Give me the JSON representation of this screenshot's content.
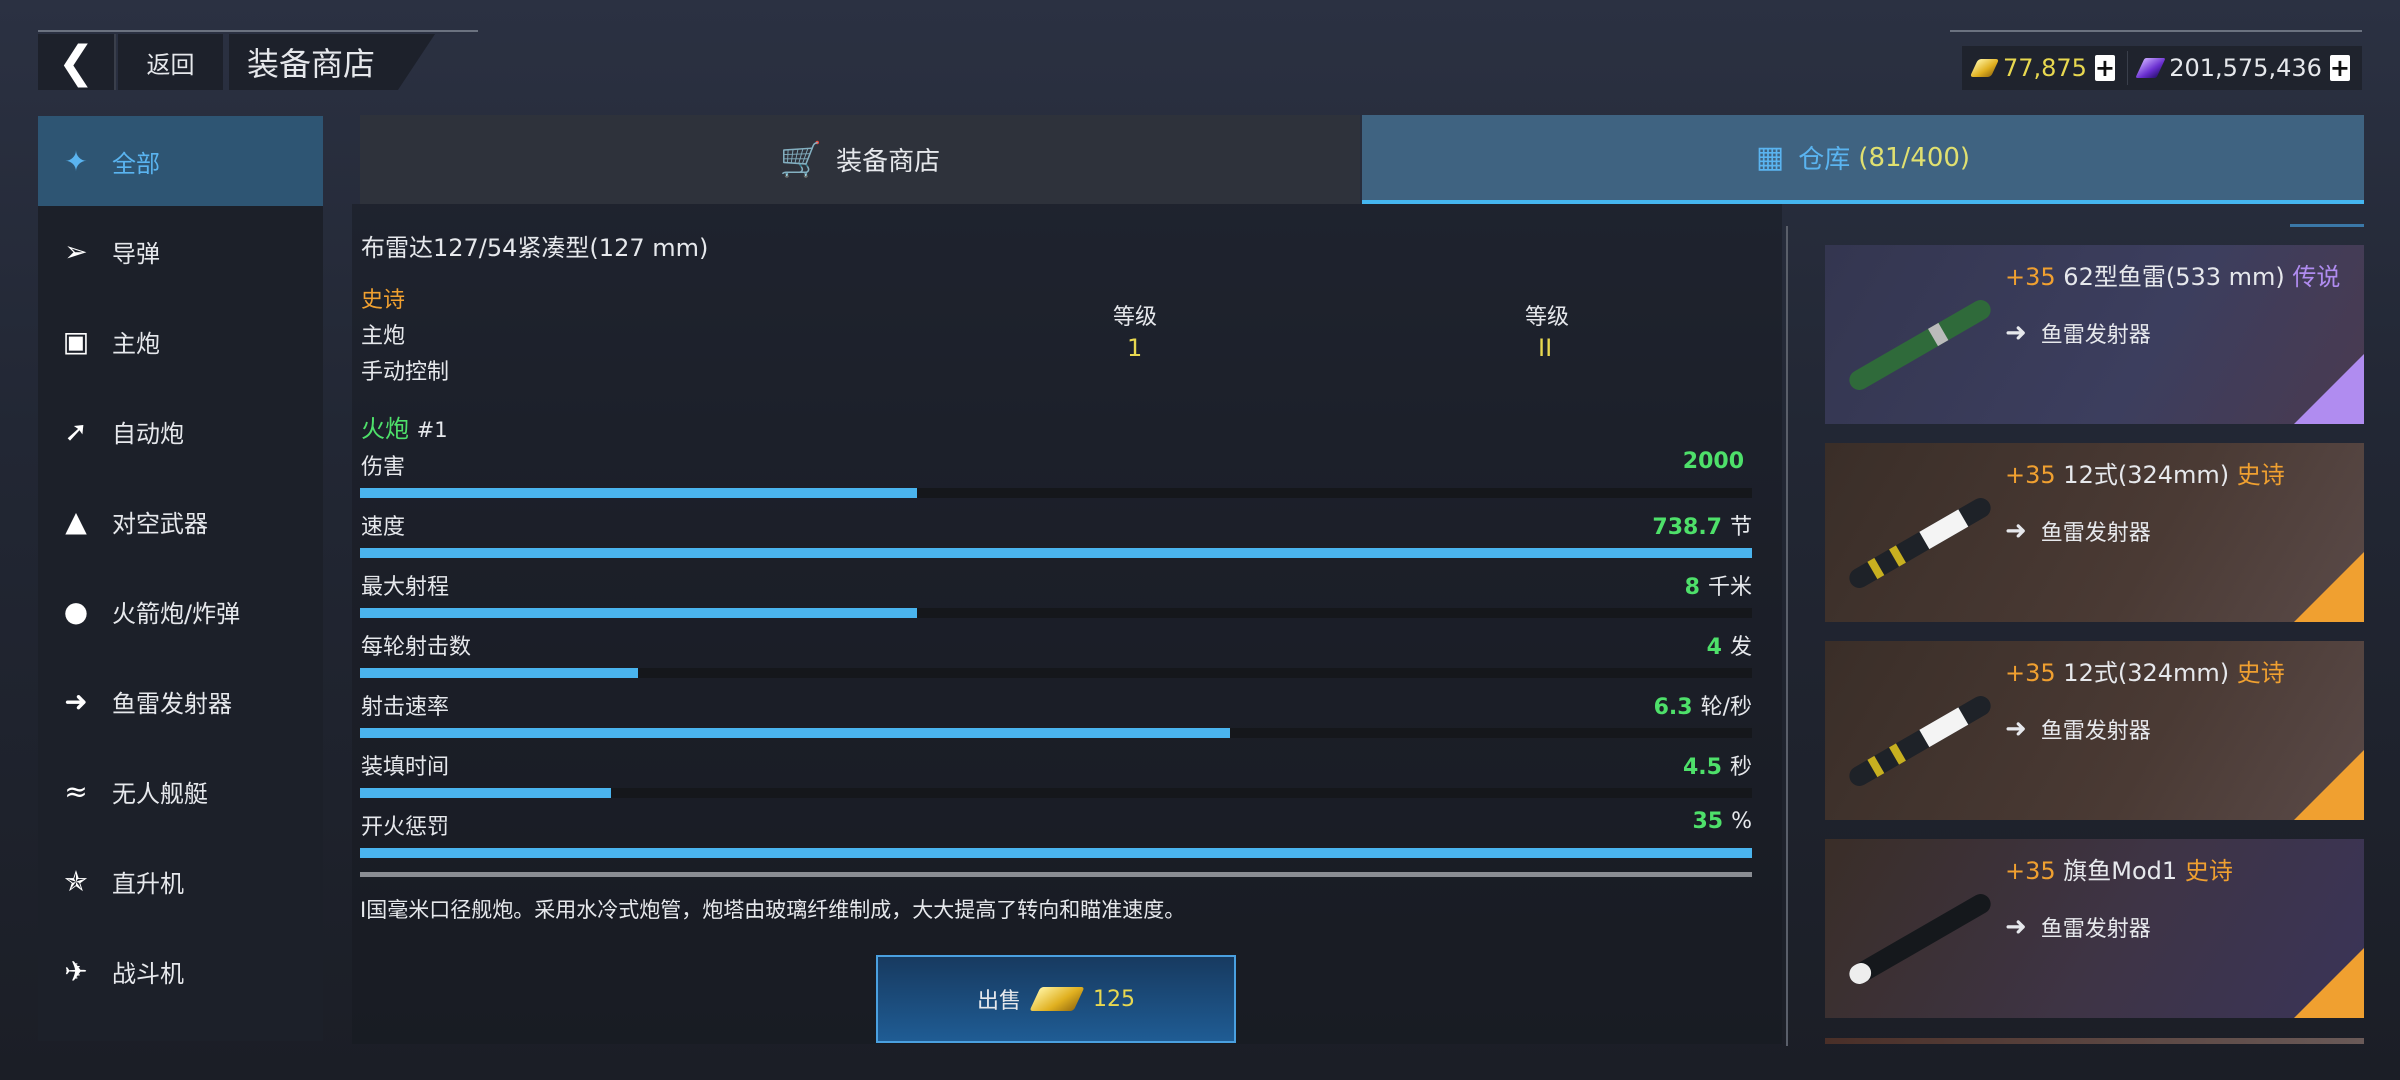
{
  "header": {
    "back_icon": "chevron-left-icon",
    "back_label": "返回",
    "title": "装备商店"
  },
  "currency": {
    "gold": "77,875",
    "gold_icon": "gold-bar-icon",
    "credits": "201,575,436",
    "credits_icon": "purple-ticket-icon"
  },
  "sidebar": {
    "items": [
      {
        "label": "全部",
        "icon": "all-icon",
        "active": true
      },
      {
        "label": "导弹",
        "icon": "missile-icon"
      },
      {
        "label": "主炮",
        "icon": "main-gun-icon"
      },
      {
        "label": "自动炮",
        "icon": "autocannon-icon"
      },
      {
        "label": "对空武器",
        "icon": "anti-air-icon"
      },
      {
        "label": "火箭炮/炸弹",
        "icon": "rocket-bomb-icon"
      },
      {
        "label": "鱼雷发射器",
        "icon": "torpedo-icon"
      },
      {
        "label": "无人舰艇",
        "icon": "drone-boat-icon"
      },
      {
        "label": "直升机",
        "icon": "helicopter-icon"
      },
      {
        "label": "战斗机",
        "icon": "fighter-jet-icon"
      }
    ]
  },
  "tabs": [
    {
      "label": "装备商店",
      "icon": "cart-icon"
    },
    {
      "label": "仓库",
      "count": "(81/400)",
      "icon": "boxes-icon",
      "active": true
    }
  ],
  "detail": {
    "name": "布雷达127/54紧凑型(127 mm)",
    "rarity": "史诗",
    "category": "主炮",
    "control": "手动控制",
    "levels": [
      {
        "label": "等级",
        "value": "1"
      },
      {
        "label": "等级",
        "value": "II"
      }
    ],
    "weapon": {
      "name": "火炮",
      "index": "#1"
    },
    "stats": [
      {
        "label": "伤害",
        "value": "2000",
        "unit": "",
        "fill": 0.4
      },
      {
        "label": "速度",
        "value": "738.7",
        "unit": "节",
        "fill": 1.0
      },
      {
        "label": "最大射程",
        "value": "8",
        "unit": "千米",
        "fill": 0.4
      },
      {
        "label": "每轮射击数",
        "value": "4",
        "unit": "发",
        "fill": 0.2
      },
      {
        "label": "射击速率",
        "value": "6.3",
        "unit": "轮/秒",
        "fill": 0.625
      },
      {
        "label": "装填时间",
        "value": "4.5",
        "unit": "秒",
        "fill": 0.18
      },
      {
        "label": "开火惩罚",
        "value": "35",
        "unit": "%",
        "fill": 1.0
      }
    ],
    "description": "I国毫米口径舰炮。采用水冷式炮管，炮塔由玻璃纤维制成，大大提高了转向和瞄准速度。",
    "sell": {
      "label": "出售",
      "price": "125"
    }
  },
  "inventory": [
    {
      "level": "+35",
      "name": "62型鱼雷(533 mm)",
      "rarity": "传说",
      "rarity_color": "#b08cf0",
      "type": "鱼雷发射器"
    },
    {
      "level": "+35",
      "name": "12式(324mm)",
      "rarity": "史诗",
      "rarity_color": "#f0a030",
      "type": "鱼雷发射器"
    },
    {
      "level": "+35",
      "name": "12式(324mm)",
      "rarity": "史诗",
      "rarity_color": "#f0a030",
      "type": "鱼雷发射器"
    },
    {
      "level": "+35",
      "name": "旗鱼Mod1",
      "rarity": "史诗",
      "rarity_color": "#f0a030",
      "type": "鱼雷发射器"
    }
  ],
  "colors": {
    "accent": "#45b6f0",
    "stat_value": "#4ee06a",
    "epic": "#f0a030",
    "legendary": "#b08cf0",
    "level_value": "#e8d850"
  }
}
